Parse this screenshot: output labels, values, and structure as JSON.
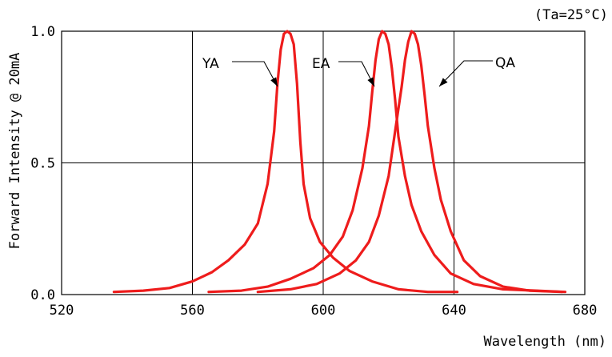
{
  "chart_data": {
    "type": "line",
    "title": "",
    "annotation": "(Ta=25°C)",
    "xlabel": "Wavelength (nm)",
    "ylabel": "Forward Intensity @ 20mA",
    "xlim": [
      520,
      680
    ],
    "ylim": [
      0.0,
      1.0
    ],
    "xticks": [
      "520",
      "560",
      "600",
      "640",
      "680"
    ],
    "yticks": [
      "0.0",
      "0.5",
      "1.0"
    ],
    "grid": true,
    "line_color": "#ee1c1c",
    "series": [
      {
        "name": "YA",
        "x": [
          536,
          545,
          553,
          560,
          566,
          571,
          576,
          580,
          583,
          585,
          586,
          587,
          588,
          589,
          590,
          591,
          592,
          593,
          594,
          596,
          599,
          603,
          608,
          615,
          623,
          632,
          641
        ],
        "y": [
          0.01,
          0.015,
          0.025,
          0.05,
          0.085,
          0.13,
          0.19,
          0.27,
          0.42,
          0.62,
          0.8,
          0.93,
          0.99,
          1.0,
          0.99,
          0.95,
          0.8,
          0.58,
          0.42,
          0.29,
          0.2,
          0.14,
          0.09,
          0.05,
          0.02,
          0.01,
          0.01
        ]
      },
      {
        "name": "EA",
        "x": [
          565,
          575,
          583,
          590,
          597,
          602,
          606,
          609,
          612,
          614,
          615,
          616,
          617,
          618,
          619,
          620,
          621,
          622,
          623,
          625,
          627,
          630,
          634,
          639,
          646,
          655,
          665,
          674
        ],
        "y": [
          0.01,
          0.015,
          0.03,
          0.06,
          0.1,
          0.15,
          0.22,
          0.32,
          0.48,
          0.64,
          0.77,
          0.89,
          0.97,
          1.0,
          0.99,
          0.95,
          0.86,
          0.74,
          0.6,
          0.45,
          0.34,
          0.24,
          0.15,
          0.08,
          0.04,
          0.02,
          0.015,
          0.01
        ]
      },
      {
        "name": "QA",
        "x": [
          580,
          590,
          598,
          605,
          610,
          614,
          617,
          620,
          622,
          624,
          625,
          626,
          627,
          628,
          629,
          630,
          631,
          632,
          634,
          636,
          639,
          643,
          648,
          655,
          663,
          673
        ],
        "y": [
          0.01,
          0.02,
          0.04,
          0.08,
          0.13,
          0.2,
          0.3,
          0.45,
          0.62,
          0.79,
          0.89,
          0.96,
          1.0,
          0.99,
          0.95,
          0.87,
          0.76,
          0.64,
          0.48,
          0.36,
          0.24,
          0.13,
          0.07,
          0.03,
          0.015,
          0.01
        ]
      }
    ],
    "labels": [
      {
        "series": "YA",
        "text": "YA"
      },
      {
        "series": "EA",
        "text": "EA"
      },
      {
        "series": "QA",
        "text": "QA"
      }
    ]
  }
}
